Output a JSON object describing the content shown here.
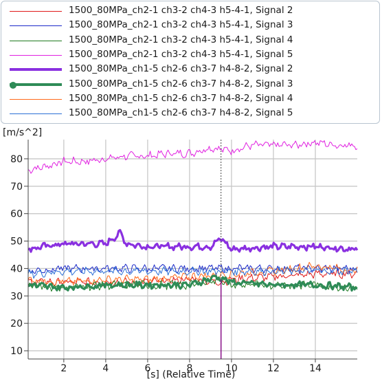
{
  "chart_data": {
    "type": "line",
    "ylabel": "[m/s^2]",
    "xlabel": "[s] (Relative Time)",
    "xlim": [
      0.3,
      16
    ],
    "ylim": [
      7,
      87
    ],
    "xticks": [
      2,
      4,
      6,
      8,
      10,
      12,
      14
    ],
    "yticks": [
      10,
      20,
      30,
      40,
      50,
      60,
      70,
      80
    ],
    "grid": true,
    "legend_position": "top",
    "cursor_x": 9.5,
    "series": [
      {
        "name": "1500_80MPa_ch2-1 ch3-2 ch4-3 h5-4-1, Signal 2",
        "color": "#e01818",
        "line_weight": "thin",
        "x": [
          0.3,
          2,
          4,
          6,
          8,
          9.5,
          10,
          12,
          14,
          16
        ],
        "y": [
          35,
          35,
          35,
          35,
          36,
          35,
          36,
          37,
          38,
          38
        ]
      },
      {
        "name": "1500_80MPa_ch2-1 ch3-2 ch4-3 h5-4-1, Signal 3",
        "color": "#1a28c8",
        "line_weight": "thin",
        "x": [
          0.3,
          2,
          4,
          6,
          8,
          9.5,
          10,
          12,
          14,
          16
        ],
        "y": [
          39,
          40,
          40,
          40,
          40,
          40,
          40,
          40,
          40,
          40
        ]
      },
      {
        "name": "1500_80MPa_ch2-1 ch3-2 ch4-3 h5-4-1, Signal 4",
        "color": "#1e7a1e",
        "line_weight": "thin",
        "x": [
          0.3,
          2,
          4,
          6,
          8,
          9.5,
          10,
          12,
          14,
          16
        ],
        "y": [
          34,
          33,
          34,
          34,
          34,
          36,
          34,
          34,
          34,
          33
        ]
      },
      {
        "name": "1500_80MPa_ch2-1 ch3-2 ch4-3 h5-4-1, Signal 5",
        "color": "#e020e0",
        "line_weight": "thin",
        "x": [
          0.3,
          1,
          2,
          3,
          4,
          5,
          6,
          7,
          8,
          9,
          10,
          11,
          12,
          13,
          14,
          15,
          16
        ],
        "y": [
          76,
          77,
          79,
          79,
          80,
          81,
          81,
          82,
          82,
          84,
          83,
          85,
          85,
          85,
          86,
          85,
          85
        ]
      },
      {
        "name": "1500_80MPa_ch1-5 ch2-6 ch3-7 h4-8-2, Signal 2",
        "color": "#8a30e0",
        "line_weight": "thick",
        "x": [
          0.3,
          1,
          2,
          3,
          4,
          4.7,
          5,
          6,
          7,
          8,
          9,
          9.5,
          10,
          12,
          14,
          16
        ],
        "y": [
          47,
          48,
          49,
          49,
          49,
          53,
          49,
          48,
          48,
          48,
          48,
          51,
          47,
          48,
          48,
          47
        ]
      },
      {
        "name": "1500_80MPa_ch1-5 ch2-6 ch3-7 h4-8-2, Signal 3",
        "color": "#2e8b57",
        "line_weight": "thick",
        "marker": "circle",
        "x": [
          0.3,
          2,
          4,
          6,
          8,
          9.3,
          10,
          12,
          14,
          16
        ],
        "y": [
          34,
          33,
          34,
          34,
          34,
          37,
          35,
          34,
          34,
          33
        ]
      },
      {
        "name": "1500_80MPa_ch1-5 ch2-6 ch3-7 h4-8-2, Signal 4",
        "color": "#ff6a1a",
        "line_weight": "thin",
        "x": [
          0.3,
          2,
          4,
          6,
          8,
          10,
          12,
          14,
          16
        ],
        "y": [
          36,
          35,
          36,
          36,
          37,
          38,
          39,
          41,
          39
        ]
      },
      {
        "name": "1500_80MPa_ch1-5 ch2-6 ch3-7 h4-8-2, Signal 5",
        "color": "#2a6fd6",
        "line_weight": "thin",
        "x": [
          0.3,
          2,
          4,
          6,
          8,
          10,
          12,
          14,
          16
        ],
        "y": [
          38,
          39,
          39,
          39,
          39,
          39,
          39,
          39,
          39
        ]
      }
    ]
  }
}
